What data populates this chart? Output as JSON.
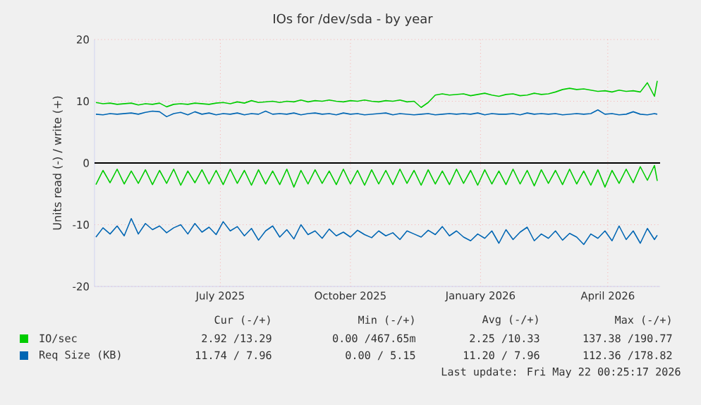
{
  "chart_data": {
    "type": "line",
    "title": "IOs for /dev/sda - by year",
    "ylabel": "Units read (-) / write (+)",
    "xlim": [
      "2025-04-18",
      "2026-05-23"
    ],
    "ylim": [
      -20,
      20
    ],
    "yticks": [
      -20,
      -10,
      0,
      10,
      20
    ],
    "xticks": [
      {
        "value": "2025-07-16",
        "label": "July 2025"
      },
      {
        "value": "2025-10-16",
        "label": "October 2025"
      },
      {
        "value": "2026-01-16",
        "label": "January 2026"
      },
      {
        "value": "2026-04-16",
        "label": "April 2026"
      }
    ],
    "grid": true,
    "legend": "bottom left",
    "ref_lines": [
      {
        "axis": "y",
        "value": 0,
        "color": "#000000"
      }
    ],
    "x": [
      "2025-04-19",
      "2025-04-24",
      "2025-04-29",
      "2025-05-04",
      "2025-05-09",
      "2025-05-14",
      "2025-05-19",
      "2025-05-24",
      "2025-05-29",
      "2025-06-03",
      "2025-06-08",
      "2025-06-13",
      "2025-06-18",
      "2025-06-23",
      "2025-06-28",
      "2025-07-03",
      "2025-07-08",
      "2025-07-13",
      "2025-07-18",
      "2025-07-23",
      "2025-07-28",
      "2025-08-02",
      "2025-08-07",
      "2025-08-12",
      "2025-08-17",
      "2025-08-22",
      "2025-08-27",
      "2025-09-01",
      "2025-09-06",
      "2025-09-11",
      "2025-09-16",
      "2025-09-21",
      "2025-09-26",
      "2025-10-01",
      "2025-10-06",
      "2025-10-11",
      "2025-10-16",
      "2025-10-21",
      "2025-10-26",
      "2025-10-31",
      "2025-11-05",
      "2025-11-10",
      "2025-11-15",
      "2025-11-20",
      "2025-11-25",
      "2025-11-30",
      "2025-12-05",
      "2025-12-10",
      "2025-12-15",
      "2025-12-20",
      "2025-12-25",
      "2025-12-30",
      "2026-01-04",
      "2026-01-09",
      "2026-01-14",
      "2026-01-19",
      "2026-01-24",
      "2026-01-29",
      "2026-02-03",
      "2026-02-08",
      "2026-02-13",
      "2026-02-18",
      "2026-02-23",
      "2026-02-28",
      "2026-03-05",
      "2026-03-10",
      "2026-03-15",
      "2026-03-20",
      "2026-03-25",
      "2026-03-30",
      "2026-04-04",
      "2026-04-09",
      "2026-04-14",
      "2026-04-19",
      "2026-04-24",
      "2026-04-29",
      "2026-05-04",
      "2026-05-09",
      "2026-05-14",
      "2026-05-19",
      "2026-05-21"
    ],
    "series": [
      {
        "name": "IO/sec",
        "color": "#00cc00",
        "values": [
          9.8,
          9.6,
          9.7,
          9.5,
          9.6,
          9.7,
          9.4,
          9.6,
          9.5,
          9.7,
          9.1,
          9.5,
          9.6,
          9.5,
          9.7,
          9.6,
          9.5,
          9.7,
          9.8,
          9.6,
          9.9,
          9.7,
          10.1,
          9.8,
          9.9,
          10.0,
          9.8,
          10.0,
          9.9,
          10.2,
          9.9,
          10.1,
          10.0,
          10.2,
          10.0,
          9.9,
          10.1,
          10.0,
          10.2,
          10.0,
          9.9,
          10.1,
          10.0,
          10.2,
          9.9,
          10.0,
          9.0,
          9.8,
          11.0,
          11.2,
          11.0,
          11.1,
          11.2,
          10.9,
          11.1,
          11.3,
          11.0,
          10.8,
          11.1,
          11.2,
          10.9,
          11.0,
          11.3,
          11.1,
          11.2,
          11.5,
          11.9,
          12.1,
          11.9,
          12.0,
          11.8,
          11.6,
          11.7,
          11.5,
          11.8,
          11.6,
          11.7,
          11.5,
          13.0,
          10.8,
          13.3
        ]
      },
      {
        "color": "#00cc00",
        "values": [
          -3.5,
          -1.2,
          -3.2,
          -1.0,
          -3.4,
          -1.3,
          -3.3,
          -1.1,
          -3.5,
          -1.2,
          -3.3,
          -1.0,
          -3.6,
          -1.3,
          -3.2,
          -1.1,
          -3.4,
          -1.2,
          -3.5,
          -1.0,
          -3.3,
          -1.2,
          -3.6,
          -1.1,
          -3.4,
          -1.3,
          -3.5,
          -1.0,
          -3.9,
          -1.2,
          -3.4,
          -1.1,
          -3.3,
          -1.3,
          -3.5,
          -1.0,
          -3.4,
          -1.2,
          -3.6,
          -1.1,
          -3.4,
          -1.2,
          -3.5,
          -1.0,
          -3.3,
          -1.2,
          -3.6,
          -1.1,
          -3.4,
          -1.3,
          -3.5,
          -1.0,
          -3.3,
          -1.2,
          -3.6,
          -1.1,
          -3.4,
          -1.3,
          -3.5,
          -1.0,
          -3.4,
          -1.2,
          -3.7,
          -1.1,
          -3.3,
          -1.2,
          -3.5,
          -1.0,
          -3.4,
          -1.3,
          -3.6,
          -1.1,
          -3.9,
          -1.2,
          -3.3,
          -1.0,
          -3.2,
          -0.6,
          -2.8,
          -0.4,
          -2.9
        ]
      },
      {
        "name": "Req Size (KB)",
        "color": "#0066b3",
        "values": [
          7.9,
          7.8,
          8.0,
          7.9,
          8.0,
          8.1,
          7.9,
          8.2,
          8.4,
          8.3,
          7.5,
          8.0,
          8.2,
          7.8,
          8.3,
          7.9,
          8.1,
          7.8,
          8.0,
          7.9,
          8.1,
          7.8,
          8.0,
          7.9,
          8.4,
          7.9,
          8.0,
          7.9,
          8.1,
          7.8,
          8.0,
          8.1,
          7.9,
          8.0,
          7.8,
          8.1,
          7.9,
          8.0,
          7.8,
          7.9,
          8.0,
          8.1,
          7.8,
          8.0,
          7.9,
          7.8,
          7.9,
          8.0,
          7.8,
          7.9,
          8.0,
          7.9,
          8.0,
          7.9,
          8.1,
          7.8,
          8.0,
          7.9,
          7.9,
          8.0,
          7.8,
          8.1,
          7.9,
          8.0,
          7.9,
          8.0,
          7.8,
          7.9,
          8.0,
          7.9,
          8.0,
          8.6,
          7.9,
          8.0,
          7.8,
          7.9,
          8.3,
          7.9,
          7.8,
          8.0,
          7.9
        ]
      },
      {
        "color": "#0066b3",
        "values": [
          -12.0,
          -10.5,
          -11.5,
          -10.2,
          -11.8,
          -9.0,
          -11.5,
          -9.8,
          -10.8,
          -10.2,
          -11.3,
          -10.5,
          -10.0,
          -11.5,
          -9.8,
          -11.2,
          -10.4,
          -11.6,
          -9.5,
          -11.0,
          -10.3,
          -11.8,
          -10.6,
          -12.5,
          -11.0,
          -10.2,
          -12.0,
          -10.8,
          -12.3,
          -10.0,
          -11.6,
          -11.0,
          -12.2,
          -10.7,
          -11.8,
          -11.2,
          -12.0,
          -10.9,
          -11.6,
          -12.1,
          -11.0,
          -11.8,
          -11.3,
          -12.4,
          -11.0,
          -11.5,
          -12.0,
          -10.9,
          -11.6,
          -10.3,
          -11.8,
          -11.0,
          -12.0,
          -12.6,
          -11.5,
          -12.2,
          -11.0,
          -13.0,
          -10.8,
          -12.4,
          -11.2,
          -10.4,
          -12.6,
          -11.5,
          -12.2,
          -11.0,
          -12.5,
          -11.4,
          -12.0,
          -13.2,
          -11.5,
          -12.2,
          -11.0,
          -12.6,
          -10.2,
          -12.4,
          -11.0,
          -13.0,
          -10.6,
          -12.4,
          -11.7
        ]
      }
    ],
    "annotations": [
      "Cur (-/+)",
      "Min (-/+)",
      "Avg (-/+)",
      "Max (-/+)",
      "2.92 /13.29",
      "0.00 /467.65m",
      "2.25 /10.33",
      "137.38 /190.77",
      "11.74 / 7.96",
      "0.00 / 5.15",
      "11.20 / 7.96",
      "112.36 /178.82",
      "Last update: Fri May 22 00:25:17 2026"
    ]
  }
}
